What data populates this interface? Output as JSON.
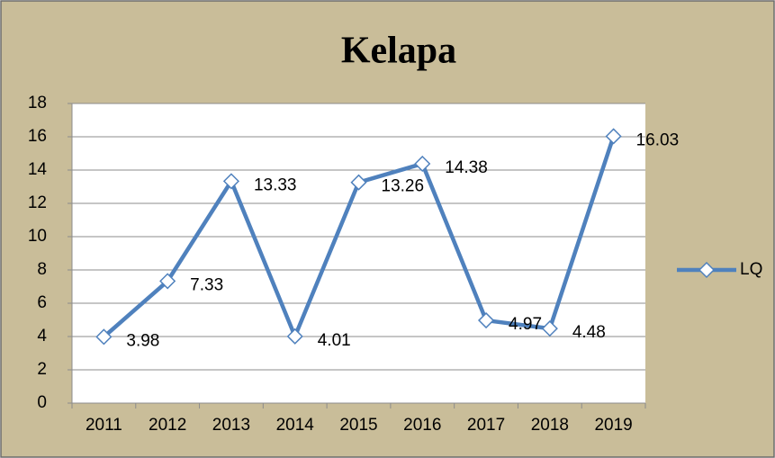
{
  "chart_data": {
    "type": "line",
    "title": "Kelapa",
    "categories": [
      "2011",
      "2012",
      "2013",
      "2014",
      "2015",
      "2016",
      "2017",
      "2018",
      "2019"
    ],
    "series": [
      {
        "name": "LQ",
        "color": "#4f81bd",
        "values": [
          3.98,
          7.33,
          13.33,
          4.01,
          13.26,
          14.38,
          4.97,
          4.48,
          16.03
        ]
      }
    ],
    "ylim": [
      0,
      18
    ],
    "yticks": [
      0,
      2,
      4,
      6,
      8,
      10,
      12,
      14,
      16,
      18
    ],
    "grid": true,
    "legend": "right"
  }
}
